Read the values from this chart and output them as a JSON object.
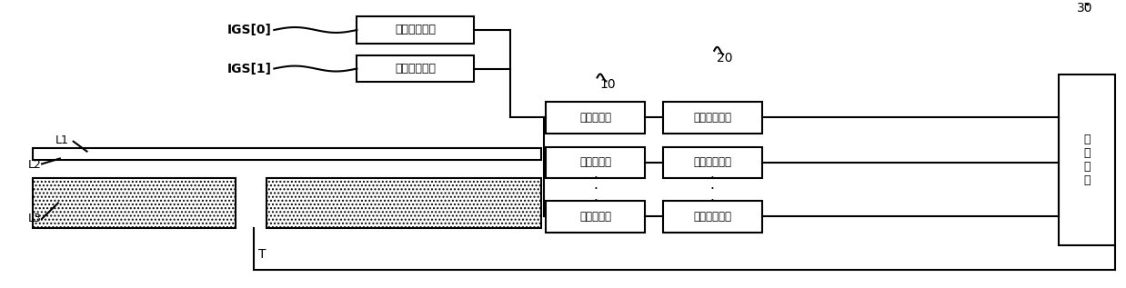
{
  "bg_color": "#ffffff",
  "line_color": "#000000",
  "box_color": "#ffffff",
  "text_color": "#000000",
  "hatch_color": "#555555",
  "labels": {
    "igs0": "IGS[0]",
    "igs1": "IGS[1]",
    "sw1": "第一选择开关",
    "sw2": "第二选择开关",
    "amp1": "电荷放大器",
    "amp2": "电荷放大器",
    "amp3": "电荷放大器",
    "sig1": "信号处理模块",
    "sig2": "信号处理模块",
    "sig3": "信号处理模块",
    "ctrl": "控\n制\n模\n块",
    "L1": "L1",
    "L2": "L2",
    "L3": "L3",
    "T": "T",
    "ref10": "10",
    "ref20": "20",
    "ref30": "30"
  }
}
